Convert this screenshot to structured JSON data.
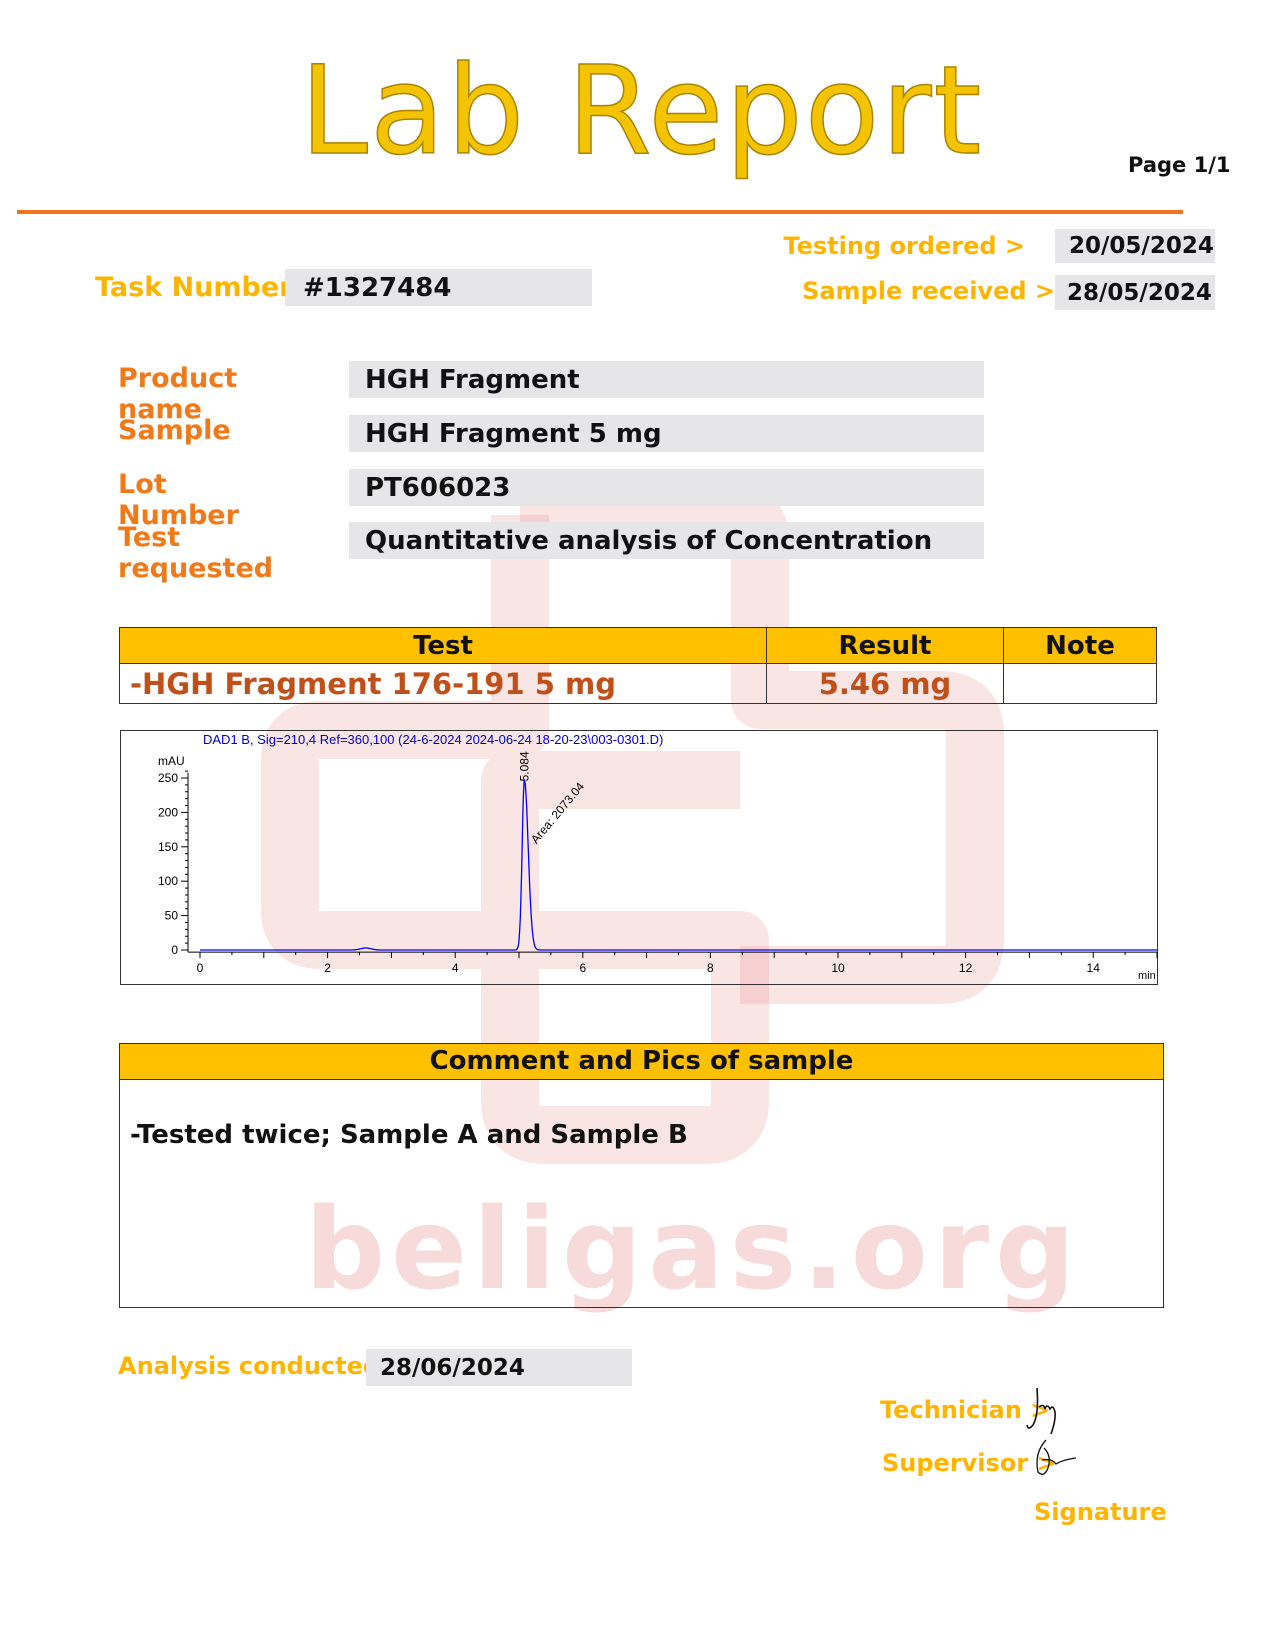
{
  "header": {
    "title": "Lab Report",
    "page": "Page 1/1"
  },
  "dates": {
    "testing_ordered_label": "Testing ordered  >",
    "testing_ordered": "20/05/2024",
    "sample_received_label": "Sample received >",
    "sample_received": "28/05/2024"
  },
  "task": {
    "label": "Task Number",
    "value": "#1327484"
  },
  "fields": [
    {
      "label": "Product name",
      "value": "HGH Fragment"
    },
    {
      "label": "Sample",
      "value": "HGH Fragment 5 mg"
    },
    {
      "label": "Lot Number",
      "value": "PT606023"
    },
    {
      "label": "Test requested",
      "value": "Quantitative analysis of Concentration"
    }
  ],
  "results": {
    "headers": [
      "Test",
      "Result",
      "Note"
    ],
    "rows": [
      {
        "test": "-HGH Fragment 176-191 5 mg",
        "result": "5.46 mg",
        "note": ""
      }
    ]
  },
  "chart_data": {
    "type": "line",
    "title": "DAD1 B, Sig=210,4 Ref=360,100 (24-6-2024 2024-06-24 18-20-23\\003-0301.D)",
    "ylabel": "mAU",
    "xlabel": "min",
    "xlim": [
      0,
      15
    ],
    "ylim": [
      -5,
      260
    ],
    "xticks": [
      0,
      2,
      4,
      6,
      8,
      10,
      12,
      14
    ],
    "yticks": [
      0,
      50,
      100,
      150,
      200,
      250
    ],
    "line_color": "#0000ff",
    "peaks": [
      {
        "rt": 5.084,
        "height": 248,
        "area_label": "Area: 2073.04",
        "rt_label": "5.084"
      },
      {
        "rt": 2.6,
        "height": 3
      }
    ]
  },
  "comment": {
    "header": "Comment and Pics of sample",
    "text": "-Tested twice; Sample A and Sample B"
  },
  "footer": {
    "analysis_label": "Analysis conducted >",
    "analysis_date": "28/06/2024",
    "technician_label": "Technician >",
    "supervisor_label": "Supervisor >",
    "signature_label": "Signature"
  },
  "watermark": {
    "text": "beligas.org"
  },
  "colors": {
    "title": "#f5c400",
    "rule": "#f07320",
    "label_orange": "#f07a1a",
    "label_yellow": "#ffb400",
    "table_header": "#ffc000",
    "result_text": "#c0501a",
    "watermark": "#e88888"
  }
}
